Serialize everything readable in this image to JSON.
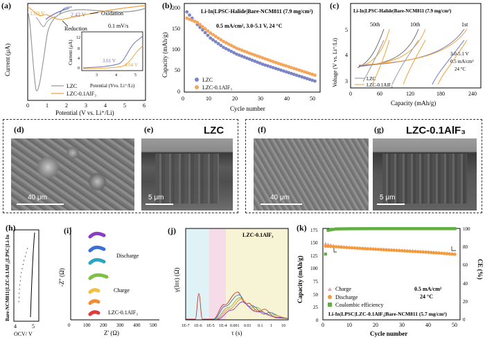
{
  "figure": {
    "panels": {
      "a": {
        "label": "(a)",
        "xlabel": "Potential (V vs. Li⁺/Li)",
        "ylabel": "Current (μA)",
        "xticks": [
          "0",
          "1",
          "2",
          "3",
          "4",
          "5",
          "6"
        ],
        "annotations": {
          "v160": "1.60 V",
          "v242": "2.42 V",
          "oxidation": "Oxidation",
          "reduction": "Reduction",
          "rate": "0.1 mV/s"
        },
        "legend": [
          "LZC",
          "LZC-0.1AlF₃"
        ],
        "inset": {
          "xlabel": "Potential (Vvs. Li⁺/Li)",
          "ylabel": "Current (μA)",
          "yticks": [
            "0",
            "4",
            "8",
            "12"
          ],
          "xticks": [
            "3",
            "4",
            "5"
          ],
          "v361": "3.61 V",
          "v404": "4.04 V"
        }
      },
      "b": {
        "label": "(b)",
        "title": "Li-In|LPSC-Halide|Bare-NCM811 (7.9 mg/cm²)",
        "condition": "0.5 mA/cm², 3.0-5.1 V,  24 °C",
        "xlabel": "Cycle number",
        "ylabel": "Capacity (mAh/g)",
        "legend": [
          "LZC",
          "LZC-0.1AlF₃"
        ],
        "xticks": [
          "0",
          "10",
          "20",
          "30",
          "40",
          "50"
        ],
        "yticks": [
          "0",
          "50",
          "100",
          "150",
          "200"
        ]
      },
      "c": {
        "label": "(c)",
        "title": "Li-In|LPSC-Halide|Bare-NCM811 (7.9 mg/cm²)",
        "cycles": [
          "50th",
          "10th",
          "1st"
        ],
        "cond1": "3.0-5.1 V",
        "cond2": "0.5 mA/cm²",
        "cond3": "24 °C",
        "xlabel": "Capacity (mAh/g)",
        "ylabel": "Voltage (V vs. Li⁺/Li)",
        "xticks": [
          "0",
          "60",
          "120",
          "180",
          "240"
        ],
        "yticks": [
          "3",
          "4",
          "5"
        ],
        "legend": [
          "LZC",
          "LZC-0.1AlF₃"
        ]
      },
      "d": {
        "label": "(d)",
        "scale": "40 μm"
      },
      "e": {
        "label": "(e)",
        "scale": "5 μm",
        "title": "LZC"
      },
      "f": {
        "label": "(f)",
        "scale": "40 μm"
      },
      "g": {
        "label": "(g)",
        "scale": "5 μm",
        "title": "LZC-0.1AlF₃"
      },
      "h": {
        "label": "(h)",
        "ylabel": "Bare-NCM811||LZC-0.1AlF₃||LPSC||Li-In",
        "xlabel": "OCV/ V",
        "xticks": [
          "4",
          "5"
        ]
      },
      "i": {
        "label": "(i)",
        "ylabel": "-Z'' (Ω)",
        "xlabel": "Z' (Ω)",
        "xticks": [
          "0",
          "100",
          "200",
          "300",
          "400",
          "500"
        ],
        "discharge": "Discharge",
        "charge": "Charge",
        "sample": "LZC-0.1AlF₃"
      },
      "j": {
        "label": "(j)",
        "ylabel": "γ(lnτ) (Ω)",
        "xlabel": "τ (s)",
        "sample": "LZC-0.1AlF₃",
        "xticks": [
          "1E-7",
          "1E-6",
          "1E-5",
          "1E-4",
          "0.001",
          "0.01",
          "0.1",
          "1",
          "10"
        ]
      },
      "k": {
        "label": "(k)",
        "ylabel": "Capacity (mAh/g)",
        "y2label": "CE (%)",
        "xlabel": "Cycle number",
        "yticks": [
          "0",
          "25",
          "50",
          "75",
          "100",
          "125",
          "150",
          "175"
        ],
        "y2ticks": [
          "0",
          "20",
          "40",
          "60",
          "80",
          "100"
        ],
        "xticks": [
          "0",
          "10",
          "20",
          "30",
          "40",
          "50"
        ],
        "legend": [
          "Charge",
          "Discharge",
          "Coulombic efficiency"
        ],
        "cond1": "0.5 mA/cm²",
        "cond2": "24 °C",
        "title": "Li-In|LPSC|LZC-0.1AlF₃|Bare-NCM811 (5.7 mg/cm²)"
      }
    },
    "colors": {
      "lzc": "#6f76b8",
      "alf3": "#f39a3d",
      "ce": "#5fb040",
      "lzc_cv": "#8e8e8e",
      "alf3_cv": "#f2a13a"
    }
  },
  "chart_data": [
    {
      "type": "line",
      "panel": "b",
      "title": "Li-In|LPSC-Halide|Bare-NCM811 (7.9 mg/cm²)",
      "xlabel": "Cycle number",
      "ylabel": "Capacity (mAh/g)",
      "ylim": [
        0,
        210
      ],
      "xlim": [
        0,
        52
      ],
      "series": [
        {
          "name": "LZC",
          "x": [
            1,
            5,
            10,
            15,
            20,
            25,
            30,
            35,
            40,
            45,
            50
          ],
          "values": [
            190,
            160,
            128,
            106,
            90,
            78,
            66,
            56,
            46,
            36,
            26
          ]
        },
        {
          "name": "LZC-0.1AlF₃",
          "x": [
            1,
            5,
            10,
            15,
            20,
            25,
            30,
            35,
            40,
            45,
            50
          ],
          "values": [
            175,
            165,
            140,
            120,
            104,
            92,
            81,
            70,
            60,
            50,
            40
          ]
        }
      ]
    },
    {
      "type": "line",
      "panel": "k",
      "title": "Li-In|LPSC|LZC-0.1AlF₃|Bare-NCM811 (5.7 mg/cm²)",
      "xlabel": "Cycle number",
      "ylabel": "Capacity (mAh/g)",
      "ylim": [
        0,
        180
      ],
      "xlim": [
        0,
        52
      ],
      "series": [
        {
          "name": "Charge",
          "x": [
            1,
            5,
            10,
            20,
            30,
            40,
            50
          ],
          "values": [
            150,
            145,
            143,
            140,
            137,
            134,
            130
          ]
        },
        {
          "name": "Discharge",
          "x": [
            1,
            5,
            10,
            20,
            30,
            40,
            50
          ],
          "values": [
            145,
            144,
            142,
            139,
            136,
            133,
            129
          ]
        },
        {
          "name": "Coulombic efficiency",
          "axis": "CE (%)",
          "x": [
            1,
            2,
            5,
            10,
            20,
            30,
            40,
            50
          ],
          "values": [
            72,
            98,
            99.5,
            99.7,
            99.8,
            99.8,
            99.8,
            99.8
          ]
        }
      ]
    }
  ]
}
